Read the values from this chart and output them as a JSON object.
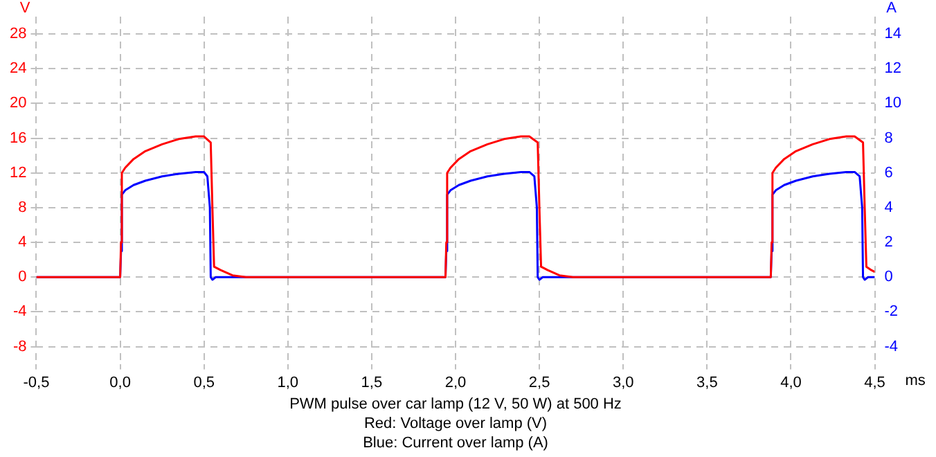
{
  "chart_data": {
    "type": "line",
    "xlabel": "ms",
    "ylabel": "V",
    "y2label": "A",
    "annotations": [
      "PWM pulse over car lamp (12 V, 50 W) at 500 Hz",
      "Red: Voltage over lamp (V)",
      "Blue: Current over lamp (A)"
    ],
    "xlim": [
      -0.5,
      4.5
    ],
    "xticks": [
      {
        "value": -0.5,
        "label": "-0,5"
      },
      {
        "value": 0,
        "label": "0,0"
      },
      {
        "value": 0.5,
        "label": "0,5"
      },
      {
        "value": 1,
        "label": "1,0"
      },
      {
        "value": 1.5,
        "label": "1,5"
      },
      {
        "value": 2,
        "label": "2,0"
      },
      {
        "value": 2.5,
        "label": "2,5"
      },
      {
        "value": 3,
        "label": "3,0"
      },
      {
        "value": 3.5,
        "label": "3,5"
      },
      {
        "value": 4,
        "label": "4,0"
      },
      {
        "value": 4.5,
        "label": "4,5"
      }
    ],
    "ylim": [
      -10,
      30
    ],
    "yticks": [
      -8,
      -4,
      0,
      4,
      8,
      12,
      16,
      20,
      24,
      28
    ],
    "y2lim": [
      -5,
      15
    ],
    "y2ticks": [
      -4,
      -2,
      0,
      2,
      4,
      6,
      8,
      10,
      12,
      14
    ],
    "grid": true,
    "legend": false,
    "marker": "none",
    "line_style": "solid",
    "series": [
      {
        "color": "#ff0000",
        "x": [
          -0.5,
          -0.01,
          0,
          0.005,
          0.01,
          0.03,
          0.08,
          0.15,
          0.25,
          0.35,
          0.45,
          0.5,
          0.54,
          0.55,
          0.56,
          0.6,
          0.67,
          0.75,
          1.94,
          1.945,
          1.95,
          1.97,
          2.02,
          2.09,
          2.19,
          2.29,
          2.39,
          2.44,
          2.49,
          2.5,
          2.51,
          2.55,
          2.62,
          2.7,
          3.88,
          3.885,
          3.89,
          3.91,
          3.96,
          4.03,
          4.13,
          4.23,
          4.33,
          4.38,
          4.43,
          4.44,
          4.45,
          4.48,
          4.5
        ],
        "values": [
          0,
          0,
          0,
          4,
          12,
          12.6,
          13.6,
          14.5,
          15.3,
          15.9,
          16.2,
          16.2,
          15.5,
          8,
          1.2,
          0.8,
          0.2,
          0,
          0,
          4,
          12,
          12.6,
          13.6,
          14.5,
          15.3,
          15.9,
          16.2,
          16.2,
          15.5,
          8,
          1.2,
          0.8,
          0.2,
          0,
          0,
          4,
          12,
          12.6,
          13.6,
          14.5,
          15.3,
          15.9,
          16.2,
          16.2,
          15.5,
          8,
          1.2,
          0.8,
          0.6
        ]
      },
      {
        "color": "#0000ff",
        "axis": "y2",
        "x": [
          -0.5,
          0,
          0.005,
          0.01,
          0.03,
          0.08,
          0.15,
          0.25,
          0.35,
          0.45,
          0.5,
          0.52,
          0.535,
          0.54,
          0.55,
          0.57,
          1.94,
          1.945,
          1.95,
          1.97,
          2.02,
          2.09,
          2.19,
          2.29,
          2.39,
          2.44,
          2.47,
          2.485,
          2.49,
          2.5,
          2.52,
          3.88,
          3.885,
          3.89,
          3.91,
          3.96,
          4.03,
          4.13,
          4.23,
          4.33,
          4.38,
          4.41,
          4.425,
          4.43,
          4.44,
          4.46,
          4.5
        ],
        "values": [
          0,
          0,
          1.5,
          4.75,
          5,
          5.3,
          5.55,
          5.8,
          5.95,
          6.05,
          6.05,
          5.8,
          4,
          0,
          -0.15,
          0,
          0,
          1.5,
          4.75,
          5,
          5.3,
          5.55,
          5.8,
          5.95,
          6.05,
          6.05,
          5.8,
          4,
          0,
          -0.15,
          0,
          0,
          1.5,
          4.75,
          5,
          5.3,
          5.55,
          5.8,
          5.95,
          6.05,
          6.05,
          5.8,
          4,
          0,
          -0.15,
          0,
          0
        ]
      }
    ]
  }
}
